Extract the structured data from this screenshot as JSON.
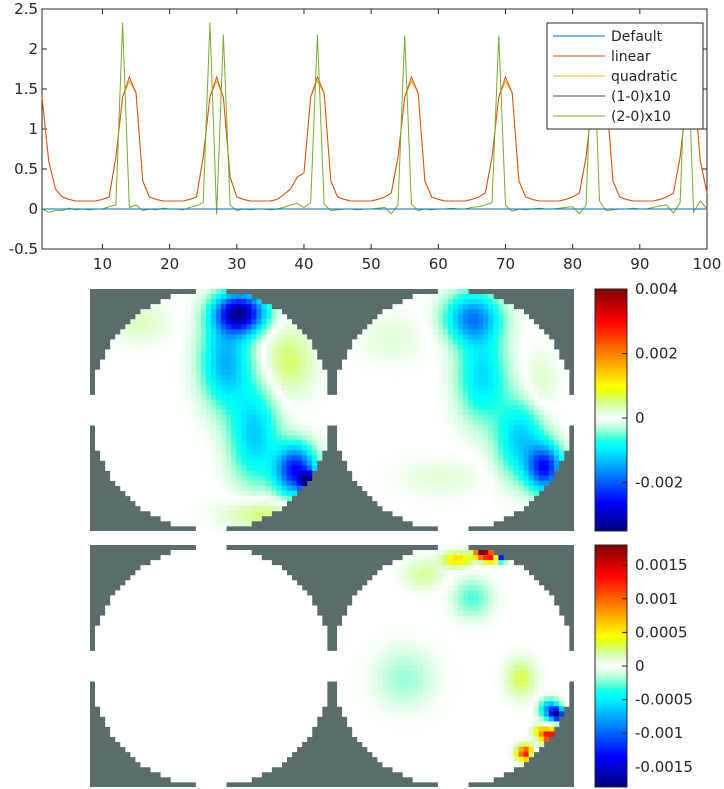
{
  "chart_data": [
    {
      "type": "line",
      "title": "",
      "xlabel": "",
      "ylabel": "",
      "xlim": [
        1,
        100
      ],
      "ylim": [
        -0.5,
        2.5
      ],
      "x_ticks": [
        10,
        20,
        30,
        40,
        50,
        60,
        70,
        80,
        90,
        100
      ],
      "y_ticks": [
        -0.5,
        0,
        0.5,
        1,
        1.5,
        2,
        2.5
      ],
      "legend_position": "top-right",
      "peak_centers": [
        13,
        26.5,
        42,
        55.5,
        69.5,
        83.5,
        98
      ],
      "series": [
        {
          "name": "Default",
          "color": "#0072bd",
          "values": [
            0,
            0,
            0,
            0,
            0,
            0,
            0,
            0,
            0,
            0,
            0,
            0,
            0,
            0,
            0,
            0,
            0,
            0,
            0,
            0,
            0,
            0,
            0,
            0,
            0,
            0,
            0,
            0,
            0,
            0,
            0,
            0,
            0,
            0,
            0,
            0,
            0,
            0,
            0,
            0,
            0,
            0,
            0,
            0,
            0,
            0,
            0,
            0,
            0,
            0,
            0,
            0,
            0,
            0,
            0,
            0,
            0,
            0,
            0,
            0,
            0,
            0,
            0,
            0,
            0,
            0,
            0,
            0,
            0,
            0,
            0,
            0,
            0,
            0,
            0,
            0,
            0,
            0,
            0,
            0,
            0,
            0,
            0,
            0,
            0,
            0,
            0,
            0,
            0,
            0,
            0,
            0,
            0,
            0,
            0,
            0,
            0,
            0,
            0,
            0
          ]
        },
        {
          "name": "linear",
          "color": "#d95319",
          "values": [
            1.4,
            0.6,
            0.25,
            0.15,
            0.12,
            0.1,
            0.1,
            0.1,
            0.1,
            0.12,
            0.15,
            0.65,
            1.4,
            1.65,
            1.45,
            0.35,
            0.15,
            0.12,
            0.1,
            0.1,
            0.1,
            0.1,
            0.12,
            0.15,
            0.65,
            1.4,
            1.65,
            1.4,
            0.4,
            0.15,
            0.12,
            0.1,
            0.1,
            0.1,
            0.1,
            0.12,
            0.18,
            0.25,
            0.4,
            0.45,
            1.4,
            1.65,
            1.45,
            0.35,
            0.15,
            0.12,
            0.1,
            0.1,
            0.1,
            0.1,
            0.12,
            0.15,
            0.2,
            0.65,
            1.4,
            1.65,
            1.45,
            0.35,
            0.15,
            0.12,
            0.1,
            0.1,
            0.1,
            0.1,
            0.12,
            0.15,
            0.2,
            0.65,
            1.4,
            1.65,
            1.45,
            0.35,
            0.15,
            0.12,
            0.1,
            0.1,
            0.1,
            0.1,
            0.12,
            0.15,
            0.2,
            0.65,
            1.4,
            1.65,
            1.45,
            0.35,
            0.15,
            0.12,
            0.1,
            0.1,
            0.1,
            0.1,
            0.12,
            0.15,
            0.2,
            0.65,
            1.4,
            1.65,
            0.6,
            0.2
          ]
        },
        {
          "name": "quadratic",
          "color": "#edb120",
          "values": [
            1.4,
            0.6,
            0.25,
            0.15,
            0.12,
            0.1,
            0.1,
            0.1,
            0.1,
            0.12,
            0.15,
            0.65,
            1.4,
            1.6,
            1.45,
            0.35,
            0.15,
            0.12,
            0.1,
            0.1,
            0.1,
            0.1,
            0.12,
            0.15,
            0.65,
            1.4,
            1.6,
            1.4,
            0.4,
            0.15,
            0.12,
            0.1,
            0.1,
            0.1,
            0.1,
            0.12,
            0.18,
            0.25,
            0.4,
            0.45,
            1.4,
            1.6,
            1.45,
            0.35,
            0.15,
            0.12,
            0.1,
            0.1,
            0.1,
            0.1,
            0.12,
            0.15,
            0.2,
            0.65,
            1.4,
            1.6,
            1.45,
            0.35,
            0.15,
            0.12,
            0.1,
            0.1,
            0.1,
            0.1,
            0.12,
            0.15,
            0.2,
            0.65,
            1.4,
            1.6,
            1.45,
            0.35,
            0.15,
            0.12,
            0.1,
            0.1,
            0.1,
            0.1,
            0.12,
            0.15,
            0.2,
            0.65,
            1.4,
            1.6,
            1.45,
            0.35,
            0.15,
            0.12,
            0.1,
            0.1,
            0.1,
            0.1,
            0.12,
            0.15,
            0.2,
            0.65,
            1.4,
            1.6,
            0.6,
            0.2
          ]
        },
        {
          "name": "(1-0)x10",
          "color": "#7e2f8e",
          "values": [
            0,
            0,
            0,
            0,
            0,
            0,
            0,
            0,
            0,
            0,
            0,
            0,
            0,
            0,
            0,
            0,
            0,
            0,
            0,
            0,
            0,
            0,
            0,
            0,
            0,
            0,
            0,
            0,
            0,
            0,
            0,
            0,
            0,
            0,
            0,
            0,
            0,
            0,
            0,
            0,
            0,
            0,
            0,
            0,
            0,
            0,
            0,
            0,
            0,
            0,
            0,
            0,
            0,
            0,
            0,
            0,
            0,
            0,
            0,
            0,
            0,
            0,
            0,
            0,
            0,
            0,
            0,
            0,
            0,
            0,
            0,
            0,
            0,
            0,
            0,
            0,
            0,
            0,
            0,
            0,
            0,
            0,
            0,
            0,
            0,
            0,
            0,
            0,
            0,
            0,
            0,
            0,
            0,
            0,
            0,
            0,
            0,
            0,
            0,
            0
          ]
        },
        {
          "name": "(2-0)x10",
          "color": "#77ac30",
          "values": [
            0,
            -0.04,
            -0.02,
            -0.02,
            0.01,
            -0.01,
            0,
            -0.01,
            0,
            0,
            0.03,
            0.05,
            2.33,
            0.02,
            0.05,
            -0.02,
            0,
            -0.01,
            0.01,
            0,
            0,
            -0.01,
            0.02,
            0.04,
            0.08,
            2.33,
            -0.07,
            2.18,
            0.05,
            -0.02,
            0,
            -0.01,
            0,
            0,
            -0.01,
            0,
            0.02,
            0.05,
            0.07,
            0.02,
            0.08,
            2.18,
            0.06,
            -0.02,
            -0.01,
            0,
            0,
            -0.01,
            0,
            0,
            0.01,
            0.02,
            -0.06,
            0.05,
            2.17,
            0.06,
            -0.02,
            0,
            -0.01,
            0,
            0,
            0.01,
            0,
            0,
            0.02,
            0.03,
            0.05,
            0.08,
            2.17,
            0.05,
            -0.03,
            0,
            -0.01,
            0,
            0.01,
            0,
            0,
            0.01,
            0.02,
            0.03,
            -0.06,
            0.05,
            2.32,
            0.1,
            -0.02,
            -0.01,
            0,
            0,
            0.01,
            0,
            0,
            0.02,
            0.04,
            0.05,
            -0.05,
            0.08,
            2.33,
            -0.04,
            0.1,
            0
          ]
        }
      ]
    },
    {
      "type": "heatmap",
      "title": "",
      "colormap": "jet",
      "clim": [
        -0.0035,
        0.004
      ],
      "colorbar_ticks": [
        {
          "value": 0.004,
          "label": "0.004"
        },
        {
          "value": 0.002,
          "label": "0.002"
        },
        {
          "value": 0,
          "label": "0"
        },
        {
          "value": -0.002,
          "label": "-0.002"
        }
      ],
      "background_color": "#5a6c6c",
      "disks": [
        {
          "blobs": [
            {
              "x": 0.62,
              "y": 0.1,
              "sx": 0.1,
              "sy": 0.08,
              "value": -0.0032
            },
            {
              "x": 0.56,
              "y": 0.3,
              "sx": 0.1,
              "sy": 0.18,
              "value": -0.0014
            },
            {
              "x": 0.68,
              "y": 0.6,
              "sx": 0.1,
              "sy": 0.2,
              "value": -0.0012
            },
            {
              "x": 0.85,
              "y": 0.75,
              "sx": 0.08,
              "sy": 0.1,
              "value": -0.0026
            },
            {
              "x": 0.9,
              "y": 0.8,
              "sx": 0.03,
              "sy": 0.04,
              "value": -0.0032
            },
            {
              "x": 0.2,
              "y": 0.14,
              "sx": 0.12,
              "sy": 0.08,
              "value": 0.0003
            },
            {
              "x": 0.82,
              "y": 0.3,
              "sx": 0.1,
              "sy": 0.14,
              "value": 0.0006
            },
            {
              "x": 0.72,
              "y": 0.93,
              "sx": 0.16,
              "sy": 0.06,
              "value": 0.0006
            },
            {
              "x": 0.9,
              "y": 0.85,
              "sx": 0.03,
              "sy": 0.03,
              "value": 0.0012
            }
          ]
        },
        {
          "blobs": [
            {
              "x": 0.58,
              "y": 0.12,
              "sx": 0.11,
              "sy": 0.1,
              "value": -0.0017
            },
            {
              "x": 0.62,
              "y": 0.36,
              "sx": 0.1,
              "sy": 0.18,
              "value": -0.0011
            },
            {
              "x": 0.78,
              "y": 0.62,
              "sx": 0.1,
              "sy": 0.16,
              "value": -0.0012
            },
            {
              "x": 0.88,
              "y": 0.74,
              "sx": 0.07,
              "sy": 0.09,
              "value": -0.0024
            },
            {
              "x": 0.86,
              "y": 0.4,
              "sx": 0.07,
              "sy": 0.14,
              "value": 0.0003
            },
            {
              "x": 0.25,
              "y": 0.2,
              "sx": 0.14,
              "sy": 0.1,
              "value": 0.0002
            },
            {
              "x": 0.45,
              "y": 0.78,
              "sx": 0.18,
              "sy": 0.08,
              "value": 0.0002
            }
          ]
        }
      ]
    },
    {
      "type": "heatmap",
      "title": "",
      "colormap": "jet",
      "clim": [
        -0.0018,
        0.0018
      ],
      "colorbar_ticks": [
        {
          "value": 0.0015,
          "label": "0.0015"
        },
        {
          "value": 0.001,
          "label": "0.001"
        },
        {
          "value": 0.0005,
          "label": "0.0005"
        },
        {
          "value": 0,
          "label": "0"
        },
        {
          "value": -0.0005,
          "label": "-0.0005"
        },
        {
          "value": -0.001,
          "label": "-0.001"
        },
        {
          "value": -0.0015,
          "label": "-0.0015"
        }
      ],
      "background_color": "#5a6c6c",
      "disks": [
        {
          "blobs": []
        },
        {
          "blobs": [
            {
              "x": 0.62,
              "y": 0.03,
              "sx": 0.03,
              "sy": 0.025,
              "value": 0.0018
            },
            {
              "x": 0.66,
              "y": 0.05,
              "sx": 0.03,
              "sy": 0.025,
              "value": 0.0011
            },
            {
              "x": 0.7,
              "y": 0.05,
              "sx": 0.02,
              "sy": 0.02,
              "value": -0.0015
            },
            {
              "x": 0.52,
              "y": 0.06,
              "sx": 0.06,
              "sy": 0.03,
              "value": 0.0006
            },
            {
              "x": 0.38,
              "y": 0.12,
              "sx": 0.08,
              "sy": 0.06,
              "value": 0.0002
            },
            {
              "x": 0.58,
              "y": 0.22,
              "sx": 0.08,
              "sy": 0.08,
              "value": -0.0003
            },
            {
              "x": 0.78,
              "y": 0.55,
              "sx": 0.06,
              "sy": 0.08,
              "value": 0.0003
            },
            {
              "x": 0.9,
              "y": 0.68,
              "sx": 0.04,
              "sy": 0.04,
              "value": -0.0009
            },
            {
              "x": 0.93,
              "y": 0.7,
              "sx": 0.025,
              "sy": 0.025,
              "value": -0.0016
            },
            {
              "x": 0.86,
              "y": 0.77,
              "sx": 0.03,
              "sy": 0.025,
              "value": 0.0005
            },
            {
              "x": 0.9,
              "y": 0.79,
              "sx": 0.035,
              "sy": 0.03,
              "value": 0.0014
            },
            {
              "x": 0.8,
              "y": 0.86,
              "sx": 0.035,
              "sy": 0.03,
              "value": 0.0013
            },
            {
              "x": 0.84,
              "y": 0.87,
              "sx": 0.02,
              "sy": 0.02,
              "value": -0.0012
            },
            {
              "x": 0.3,
              "y": 0.55,
              "sx": 0.12,
              "sy": 0.12,
              "value": -0.0002
            }
          ]
        }
      ]
    }
  ]
}
